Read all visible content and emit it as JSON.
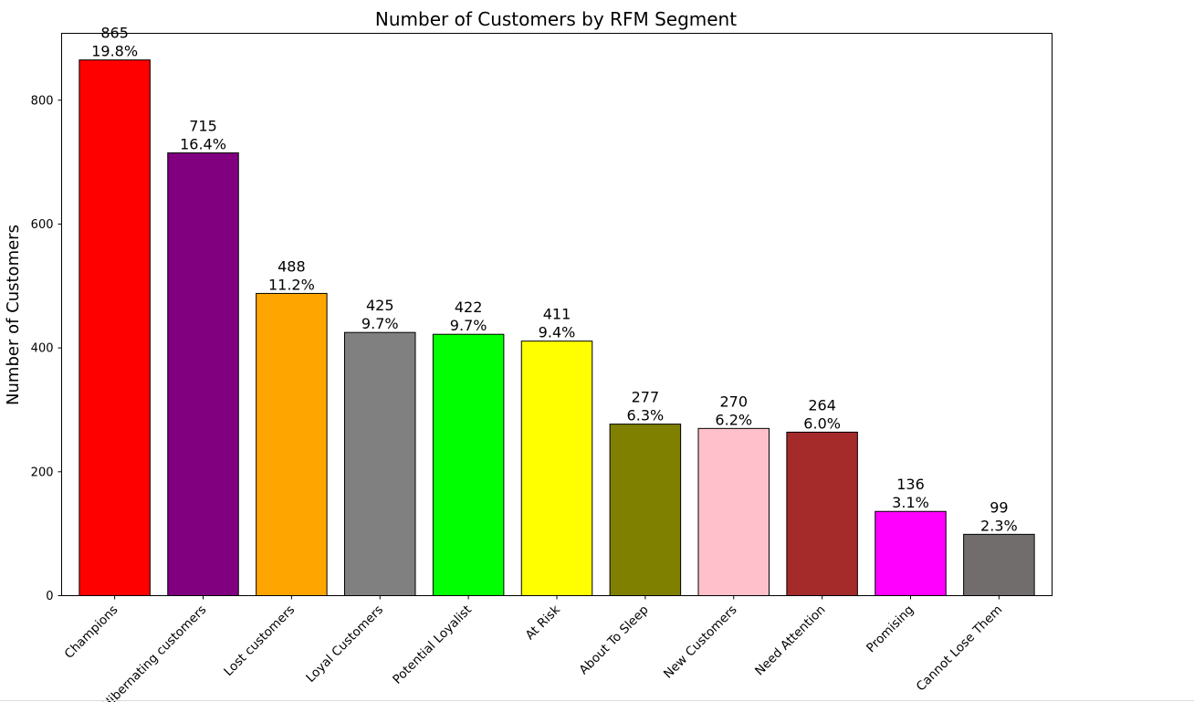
{
  "chart_data": {
    "type": "bar",
    "title": "Number of Customers by RFM Segment",
    "xlabel": "",
    "ylabel": "Number of Customers",
    "ylim": [
      0,
      908
    ],
    "yticks": [
      0,
      200,
      400,
      600,
      800
    ],
    "grid": false,
    "legend": "none",
    "categories": [
      "Champions",
      "Hibernating customers",
      "Lost customers",
      "Loyal Customers",
      "Potential Loyalist",
      "At Risk",
      "About To Sleep",
      "New Customers",
      "Need Attention",
      "Promising",
      "Cannot Lose Them"
    ],
    "values": [
      865,
      715,
      488,
      425,
      422,
      411,
      277,
      270,
      264,
      136,
      99
    ],
    "percent_labels": [
      "19.8%",
      "16.4%",
      "11.2%",
      "9.7%",
      "9.7%",
      "9.4%",
      "6.3%",
      "6.2%",
      "6.0%",
      "3.1%",
      "2.3%"
    ],
    "colors": [
      "#ff0000",
      "#800080",
      "#ffa500",
      "#808080",
      "#00ff00",
      "#ffff00",
      "#808000",
      "#ffc0cb",
      "#a52a2a",
      "#ff00ff",
      "#716d6c"
    ],
    "edge_color": "#000000"
  }
}
